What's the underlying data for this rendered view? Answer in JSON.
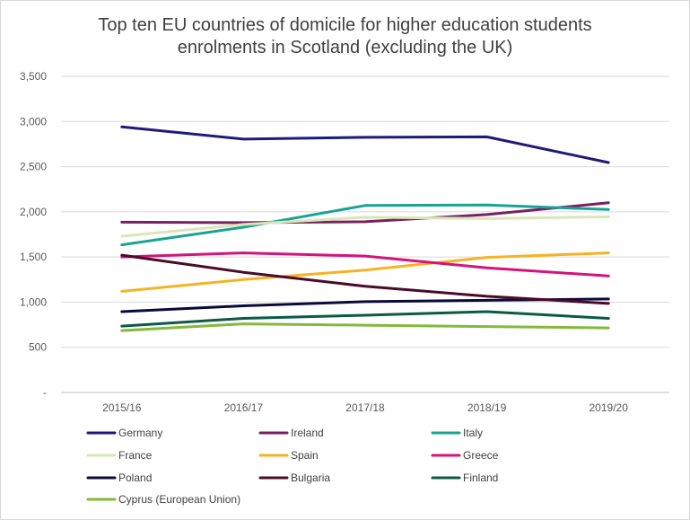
{
  "chart_data": {
    "type": "line",
    "title_lines": [
      "Top ten EU countries of domicile for higher education students",
      "enrolments in Scotland (excluding the UK)"
    ],
    "categories": [
      "2015/16",
      "2016/17",
      "2017/18",
      "2018/19",
      "2019/20"
    ],
    "y_ticks": [
      0,
      500,
      1000,
      1500,
      2000,
      2500,
      3000,
      3500
    ],
    "y_tick_labels": [
      "-",
      "500",
      "1,000",
      "1,500",
      "2,000",
      "2,500",
      "3,000",
      "3,500"
    ],
    "ylim": [
      0,
      3500
    ],
    "grid": true,
    "legend_position": "bottom",
    "series": [
      {
        "name": "Germany",
        "color": "#1f1a7a",
        "values": [
          2940,
          2805,
          2825,
          2830,
          2545
        ]
      },
      {
        "name": "Ireland",
        "color": "#7a2060",
        "values": [
          1885,
          1880,
          1890,
          1970,
          2100
        ]
      },
      {
        "name": "Italy",
        "color": "#1aa394",
        "values": [
          1635,
          1830,
          2070,
          2075,
          2025
        ]
      },
      {
        "name": "France",
        "color": "#d9e6b8",
        "values": [
          1730,
          1860,
          1940,
          1925,
          1945
        ]
      },
      {
        "name": "Spain",
        "color": "#f5b324",
        "values": [
          1120,
          1250,
          1355,
          1495,
          1545
        ]
      },
      {
        "name": "Greece",
        "color": "#d4147a",
        "values": [
          1500,
          1545,
          1510,
          1380,
          1290
        ]
      },
      {
        "name": "Poland",
        "color": "#0a0a3c",
        "values": [
          895,
          960,
          1005,
          1020,
          1035
        ]
      },
      {
        "name": "Bulgaria",
        "color": "#4a0a28",
        "values": [
          1520,
          1330,
          1175,
          1065,
          985
        ]
      },
      {
        "name": "Finland",
        "color": "#0a5a44",
        "values": [
          735,
          820,
          855,
          895,
          820
        ]
      },
      {
        "name": "Cyprus (European Union)",
        "color": "#84b83a",
        "values": [
          685,
          760,
          745,
          730,
          715
        ]
      }
    ]
  }
}
